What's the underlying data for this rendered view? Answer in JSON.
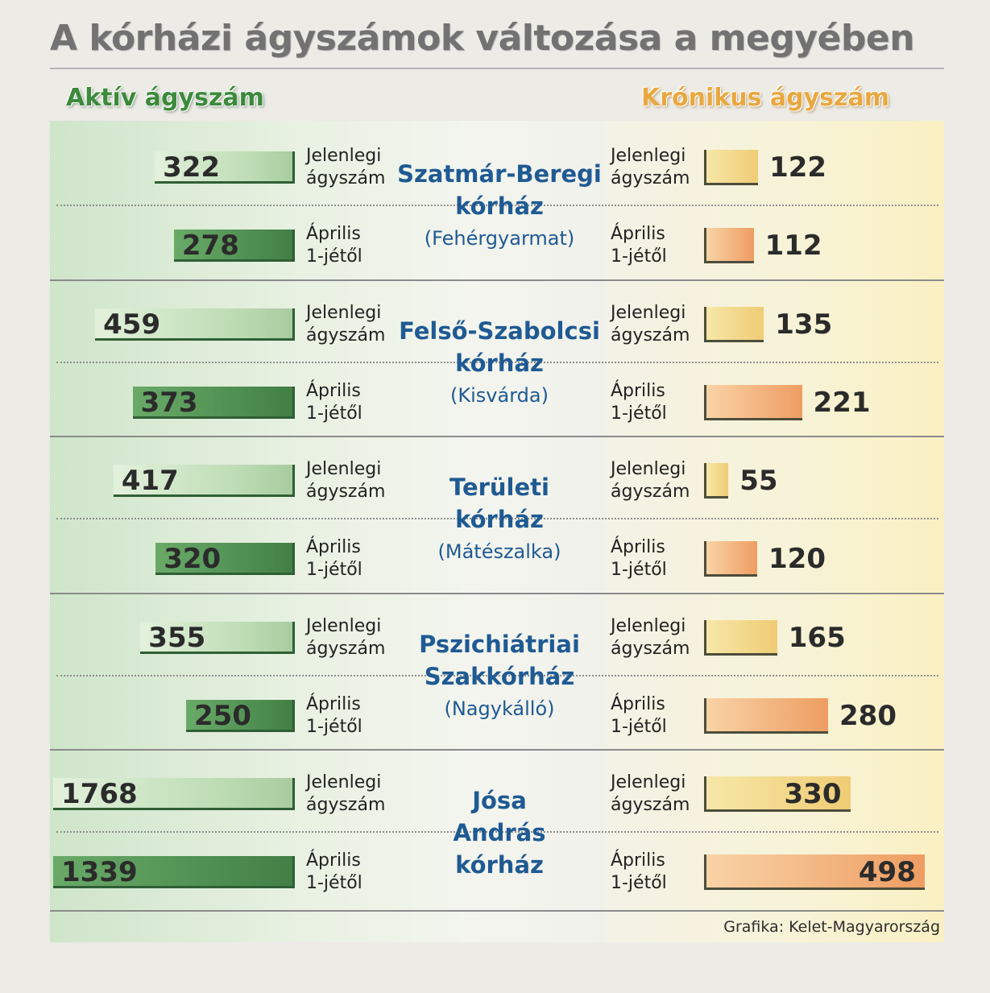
{
  "title": "A kórházi ágyszámok változása a megyében",
  "headers": {
    "left": "Aktív ágyszám",
    "right": "Krónikus ágyszám"
  },
  "labels": {
    "current": [
      "Jelenlegi",
      "ágyszám"
    ],
    "april": [
      "Április",
      "1-jétől"
    ]
  },
  "credit": "Grafika: Kelet-Magyarország",
  "colors": {
    "active_current": "#c6e2bd",
    "active_april": "#4f8f52",
    "chronic_current": "#f2d47f",
    "chronic_april": "#f0a46a",
    "hospital_name": "#1f5a93"
  },
  "chart_data": {
    "type": "bar",
    "title": "A kórházi ágyszámok változása a megyében",
    "categories": [
      "Szatmár-Beregi kórház (Fehérgyarmat)",
      "Felső-Szabolcsi kórház (Kisvárda)",
      "Területi kórház (Mátészalka)",
      "Pszichiátriai Szakkórház (Nagykálló)",
      "Jósa András kórház"
    ],
    "hospitals": [
      {
        "name": [
          "Szatmár-Beregi",
          "kórház"
        ],
        "city": "(Fehérgyarmat)"
      },
      {
        "name": [
          "Felső-Szabolcsi",
          "kórház"
        ],
        "city": "(Kisvárda)"
      },
      {
        "name": [
          "Területi",
          "kórház"
        ],
        "city": "(Mátészalka)"
      },
      {
        "name": [
          "Pszichiátriai",
          "Szakkórház"
        ],
        "city": "(Nagykálló)"
      },
      {
        "name": [
          "Jósa",
          "András",
          "kórház"
        ],
        "city": ""
      }
    ],
    "series": [
      {
        "name": "Aktív ágyszám – Jelenlegi ágyszám",
        "group": "active",
        "period": "current",
        "values": [
          322,
          459,
          417,
          355,
          1768
        ]
      },
      {
        "name": "Aktív ágyszám – Április 1-jétől",
        "group": "active",
        "period": "april",
        "values": [
          278,
          373,
          320,
          250,
          1339
        ]
      },
      {
        "name": "Krónikus ágyszám – Jelenlegi ágyszám",
        "group": "chronic",
        "period": "current",
        "values": [
          122,
          135,
          55,
          165,
          330
        ]
      },
      {
        "name": "Krónikus ágyszám – Április 1-jétől",
        "group": "chronic",
        "period": "april",
        "values": [
          112,
          221,
          120,
          280,
          498
        ]
      }
    ]
  }
}
